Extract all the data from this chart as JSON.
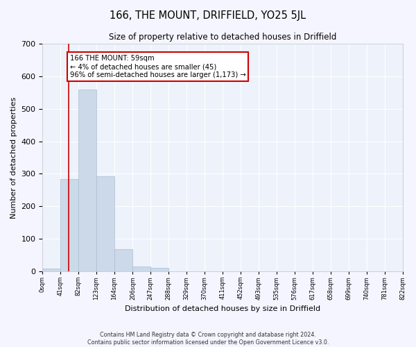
{
  "title": "166, THE MOUNT, DRIFFIELD, YO25 5JL",
  "subtitle": "Size of property relative to detached houses in Driffield",
  "xlabel": "Distribution of detached houses by size in Driffield",
  "ylabel": "Number of detached properties",
  "bar_color": "#ccd9e8",
  "bar_edge_color": "#aabdd4",
  "background_color": "#eef2fb",
  "fig_background_color": "#f5f5ff",
  "grid_color": "#ffffff",
  "bin_edges": [
    0,
    41,
    82,
    123,
    164,
    206,
    247,
    288,
    329,
    370,
    411,
    452,
    493,
    535,
    576,
    617,
    658,
    699,
    740,
    781,
    822
  ],
  "bin_labels": [
    "0sqm",
    "41sqm",
    "82sqm",
    "123sqm",
    "164sqm",
    "206sqm",
    "247sqm",
    "288sqm",
    "329sqm",
    "370sqm",
    "411sqm",
    "452sqm",
    "493sqm",
    "535sqm",
    "576sqm",
    "617sqm",
    "658sqm",
    "699sqm",
    "740sqm",
    "781sqm",
    "822sqm"
  ],
  "counts": [
    8,
    283,
    560,
    293,
    68,
    14,
    10,
    0,
    0,
    0,
    0,
    0,
    0,
    0,
    0,
    0,
    0,
    0,
    0,
    0
  ],
  "property_size": 59,
  "vline_color": "#cc0000",
  "annotation_text": "166 THE MOUNT: 59sqm\n← 4% of detached houses are smaller (45)\n96% of semi-detached houses are larger (1,173) →",
  "annotation_box_color": "#ffffff",
  "annotation_box_edge_color": "#cc0000",
  "ylim": [
    0,
    700
  ],
  "yticks": [
    0,
    100,
    200,
    300,
    400,
    500,
    600,
    700
  ],
  "footer_line1": "Contains HM Land Registry data © Crown copyright and database right 2024.",
  "footer_line2": "Contains public sector information licensed under the Open Government Licence v3.0."
}
